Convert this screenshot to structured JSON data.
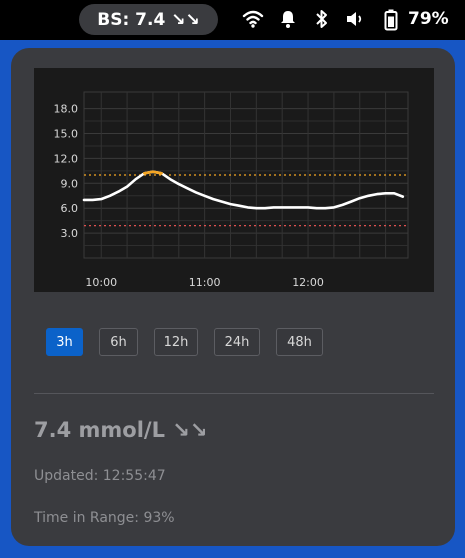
{
  "status_bar": {
    "bs_label": "BS: 7.4 ↘↘",
    "battery": "79%",
    "icons": [
      "wifi-icon",
      "notification-bell-icon",
      "bluetooth-icon",
      "volume-icon",
      "battery-icon"
    ]
  },
  "chart_data": {
    "type": "line",
    "yticks": [
      "18.0",
      "15.0",
      "12.0",
      "9.0",
      "6.0",
      "3.0"
    ],
    "ylim": [
      0,
      20
    ],
    "xticks": [
      "10:00",
      "11:00",
      "12:00"
    ],
    "xlim": [
      "09:50",
      "12:58"
    ],
    "grid": true,
    "high_threshold": 10.0,
    "low_threshold": 3.9,
    "colors": {
      "line": "#ffffff",
      "high_segment": "#f5a623",
      "high_line": "#f5a623",
      "low_line": "#e05050"
    },
    "series": [
      {
        "x": [
          "09:50",
          "09:55",
          "10:00",
          "10:05",
          "10:10",
          "10:15",
          "10:20",
          "10:25",
          "10:30",
          "10:35",
          "10:40",
          "10:45",
          "10:50",
          "10:55",
          "11:00",
          "11:05",
          "11:10",
          "11:15",
          "11:20",
          "11:25",
          "11:30",
          "11:35",
          "11:40",
          "11:45",
          "11:50",
          "11:55",
          "12:00",
          "12:05",
          "12:10",
          "12:15",
          "12:20",
          "12:25",
          "12:30",
          "12:35",
          "12:40",
          "12:45",
          "12:50",
          "12:55"
        ],
        "values": [
          7.0,
          7.0,
          7.1,
          7.5,
          8.0,
          8.6,
          9.5,
          10.2,
          10.4,
          10.2,
          9.5,
          8.9,
          8.4,
          7.9,
          7.5,
          7.1,
          6.8,
          6.5,
          6.3,
          6.1,
          6.0,
          6.0,
          6.1,
          6.1,
          6.1,
          6.1,
          6.1,
          6.0,
          6.0,
          6.1,
          6.4,
          6.8,
          7.2,
          7.5,
          7.7,
          7.8,
          7.8,
          7.4
        ]
      }
    ]
  },
  "range_buttons": [
    {
      "label": "3h",
      "active": true
    },
    {
      "label": "6h",
      "active": false
    },
    {
      "label": "12h",
      "active": false
    },
    {
      "label": "24h",
      "active": false
    },
    {
      "label": "48h",
      "active": false
    }
  ],
  "reading": "7.4 mmol/L ↘↘",
  "updated": "Updated: 12:55:47",
  "time_in_range": "Time in Range: 93%"
}
